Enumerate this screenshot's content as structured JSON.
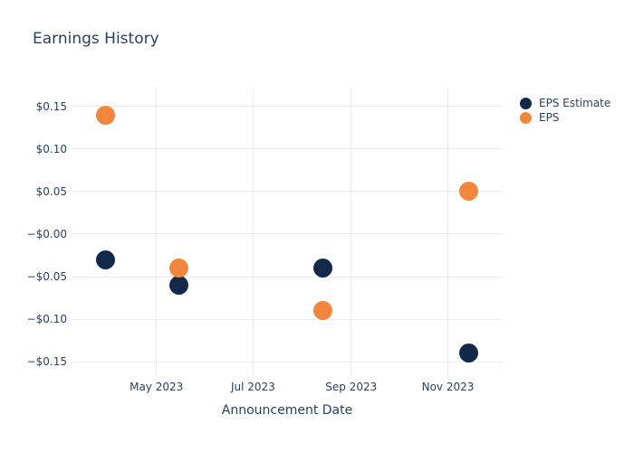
{
  "chart_data": {
    "type": "scatter",
    "title": "Earnings History",
    "xlabel": "Announcement Date",
    "ylabel": "",
    "grid": true,
    "legend_position": "top-right",
    "x_range": [
      "2023-03-09",
      "2023-12-05"
    ],
    "ylim": [
      -0.168,
      0.17
    ],
    "x_ticks": [
      {
        "label": "May 2023",
        "date": "2023-05-01"
      },
      {
        "label": "Jul 2023",
        "date": "2023-07-01"
      },
      {
        "label": "Sep 2023",
        "date": "2023-09-01"
      },
      {
        "label": "Nov 2023",
        "date": "2023-11-01"
      }
    ],
    "y_ticks": [
      {
        "label": "$0.15",
        "value": 0.15
      },
      {
        "label": "$0.10",
        "value": 0.1
      },
      {
        "label": "$0.05",
        "value": 0.05
      },
      {
        "label": "−$0.00",
        "value": 0
      },
      {
        "label": "−$0.05",
        "value": -0.05
      },
      {
        "label": "−$0.10",
        "value": -0.1
      },
      {
        "label": "−$0.15",
        "value": -0.15
      }
    ],
    "series": [
      {
        "name": "EPS Estimate",
        "color": "#12294a",
        "points": [
          {
            "date": "2023-03-30",
            "value": -0.03
          },
          {
            "date": "2023-05-15",
            "value": -0.06
          },
          {
            "date": "2023-08-14",
            "value": -0.04
          },
          {
            "date": "2023-11-14",
            "value": -0.14
          }
        ]
      },
      {
        "name": "EPS",
        "color": "#f2863d",
        "points": [
          {
            "date": "2023-03-30",
            "value": 0.14
          },
          {
            "date": "2023-05-15",
            "value": -0.04
          },
          {
            "date": "2023-08-14",
            "value": -0.09
          },
          {
            "date": "2023-11-14",
            "value": 0.05
          }
        ]
      }
    ]
  },
  "colors": {
    "background": "#ffffff",
    "text": "#2a3f5f",
    "gridline": "#e9ecf5",
    "eps_estimate": "#12294a",
    "eps": "#f2863d"
  }
}
